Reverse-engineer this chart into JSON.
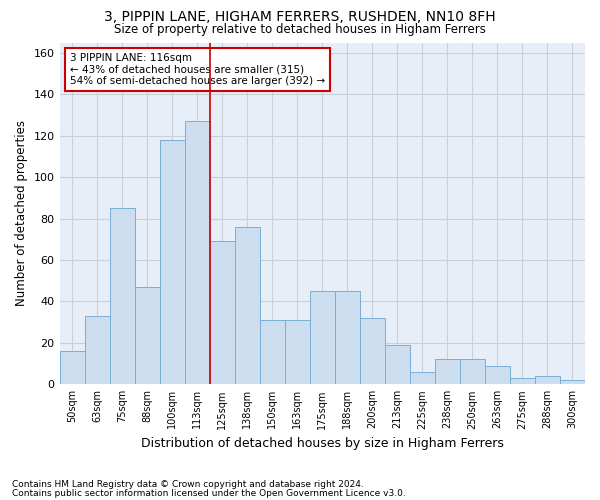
{
  "title1": "3, PIPPIN LANE, HIGHAM FERRERS, RUSHDEN, NN10 8FH",
  "title2": "Size of property relative to detached houses in Higham Ferrers",
  "xlabel": "Distribution of detached houses by size in Higham Ferrers",
  "ylabel": "Number of detached properties",
  "categories": [
    "50sqm",
    "63sqm",
    "75sqm",
    "88sqm",
    "100sqm",
    "113sqm",
    "125sqm",
    "138sqm",
    "150sqm",
    "163sqm",
    "175sqm",
    "188sqm",
    "200sqm",
    "213sqm",
    "225sqm",
    "238sqm",
    "250sqm",
    "263sqm",
    "275sqm",
    "288sqm",
    "300sqm"
  ],
  "values": [
    16,
    33,
    85,
    47,
    118,
    127,
    69,
    76,
    31,
    31,
    45,
    45,
    32,
    19,
    6,
    12,
    12,
    9,
    3,
    4,
    2
  ],
  "bar_color": "#cdddf0",
  "bar_edge_color": "#7badd4",
  "grid_color": "#c8d0dc",
  "bg_color": "#e8eef8",
  "vline_color": "#cc0000",
  "vline_x_idx": 5.5,
  "annotation_line1": "3 PIPPIN LANE: 116sqm",
  "annotation_line2": "← 43% of detached houses are smaller (315)",
  "annotation_line3": "54% of semi-detached houses are larger (392) →",
  "footnote1": "Contains HM Land Registry data © Crown copyright and database right 2024.",
  "footnote2": "Contains public sector information licensed under the Open Government Licence v3.0.",
  "ylim": [
    0,
    165
  ],
  "yticks": [
    0,
    20,
    40,
    60,
    80,
    100,
    120,
    140,
    160
  ]
}
